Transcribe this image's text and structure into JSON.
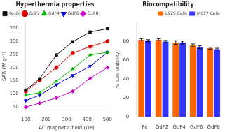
{
  "chart_data": [
    {
      "type": "line",
      "title": "Hyperthermia properties",
      "x_label": "AC magnetic field (Oe)",
      "y_label": "SAR (W g⁻¹)",
      "x": [
        100,
        168,
        250,
        330,
        415,
        500
      ],
      "series": [
        {
          "name": "Fe₃O₄",
          "color": "#111111",
          "marker": "square",
          "values": [
            115,
            158,
            248,
            298,
            335,
            348
          ]
        },
        {
          "name": "GdF2",
          "color": "#dd0000",
          "marker": "circle",
          "values": [
            110,
            152,
            200,
            255,
            280,
            300
          ]
        },
        {
          "name": "GdF4",
          "color": "#00bb00",
          "marker": "triangle",
          "values": [
            95,
            105,
            148,
            195,
            248,
            258
          ]
        },
        {
          "name": "GdF6",
          "color": "#0000dd",
          "marker": "triangle_down",
          "values": [
            75,
            95,
            135,
            170,
            205,
            258
          ]
        },
        {
          "name": "GdF8",
          "color": "#cc00cc",
          "marker": "diamond",
          "values": [
            50,
            65,
            85,
            110,
            160,
            200
          ]
        }
      ],
      "xlim": [
        100,
        500
      ],
      "xticks": [
        100,
        200,
        300,
        400,
        500
      ],
      "ylim": [
        40,
        370
      ],
      "yticks": [
        50,
        100,
        150,
        200,
        250,
        300,
        350
      ],
      "grid": false,
      "legend": "upper left"
    },
    {
      "type": "bar",
      "title": "Biocompatibility",
      "y_label": "% Cell viability",
      "categories": [
        "Fe",
        "GdF2",
        "GdF4",
        "GdF6",
        "GdF8"
      ],
      "series": [
        {
          "name": "L929 Cells",
          "color": "#ff6600",
          "values": [
            82,
            82,
            79,
            76,
            73
          ],
          "errors": [
            1.2,
            1.2,
            2.0,
            1.5,
            1.0
          ]
        },
        {
          "name": "MCF7 Cells",
          "color": "#3333ff",
          "values": [
            81,
            80,
            79,
            74,
            72
          ],
          "errors": [
            1.0,
            1.2,
            1.5,
            1.5,
            1.0
          ]
        }
      ],
      "ylim": [
        0,
        100
      ],
      "yticks": [
        0,
        20,
        40,
        60,
        80
      ],
      "grid": false,
      "legend": "upper right"
    }
  ]
}
